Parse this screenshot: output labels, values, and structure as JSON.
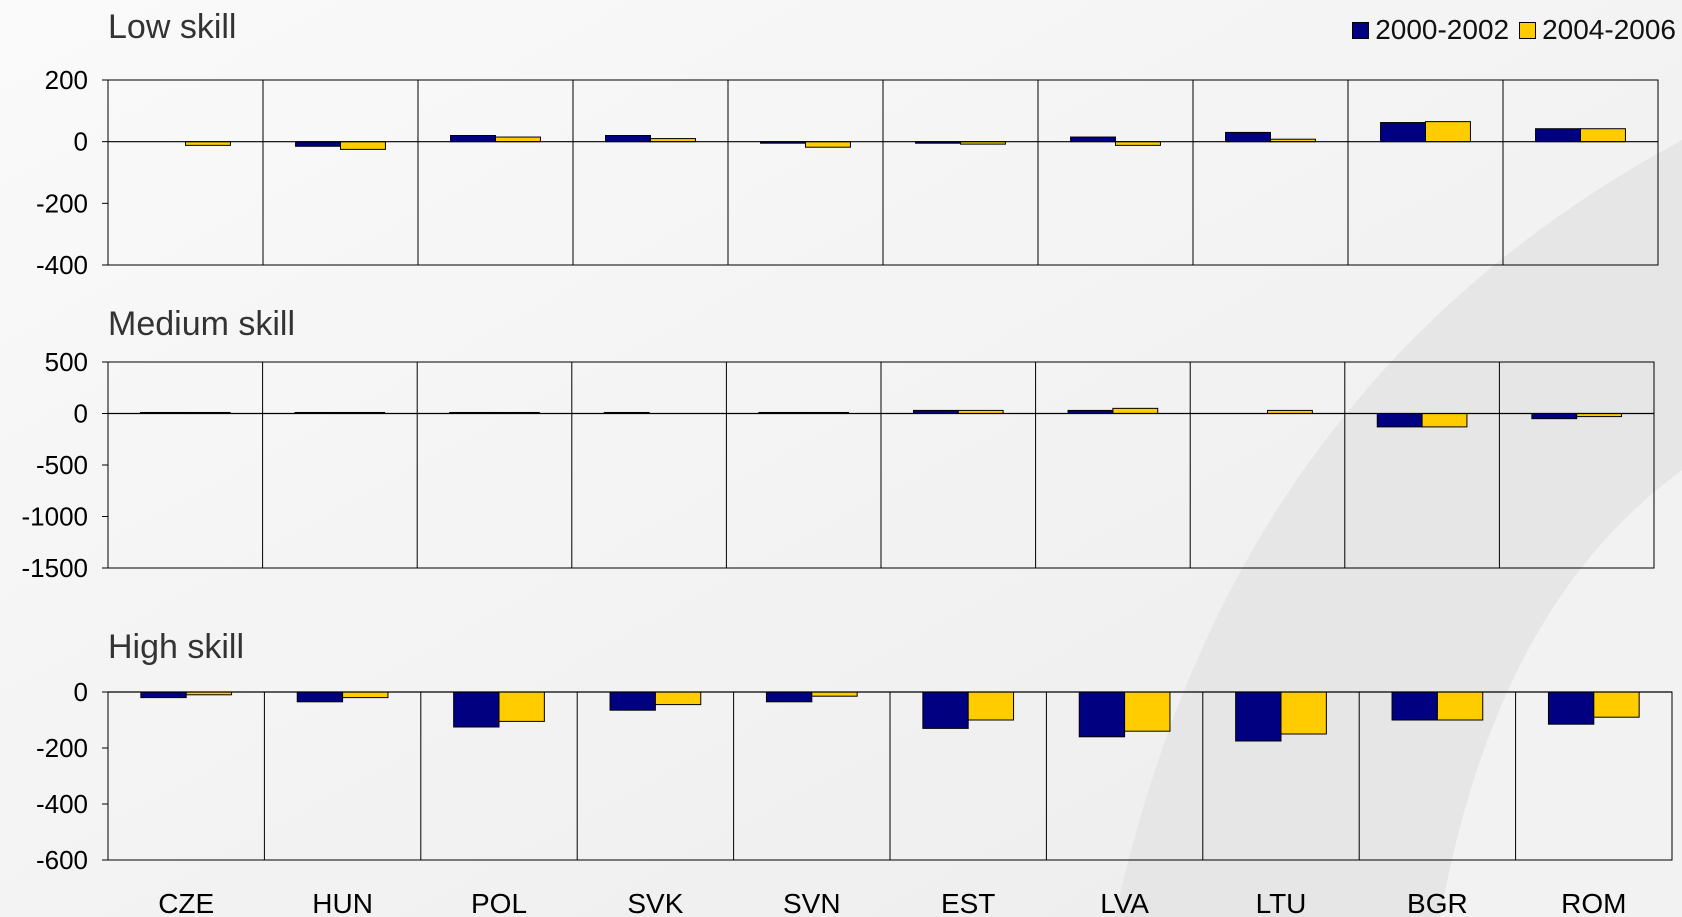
{
  "legend": {
    "series1": "2000-2002",
    "series2": "2004-2006"
  },
  "colors": {
    "series1": "#000080",
    "series2": "#ffcc00",
    "line": "#000000",
    "plot_bg": "#f4f4f4"
  },
  "chart_data": [
    {
      "type": "bar",
      "title": "Low skill",
      "categories": [
        "CZE",
        "HUN",
        "POL",
        "SVK",
        "SVN",
        "EST",
        "LVA",
        "LTU",
        "BGR",
        "ROM"
      ],
      "ylim": [
        -400,
        200
      ],
      "yticks": [
        200,
        0,
        -200,
        -400
      ],
      "series": [
        {
          "name": "2000-2002",
          "values": [
            0,
            -15,
            20,
            20,
            -5,
            -5,
            15,
            30,
            62,
            42
          ]
        },
        {
          "name": "2004-2006",
          "values": [
            -12,
            -25,
            15,
            10,
            -18,
            -8,
            -12,
            8,
            65,
            42
          ]
        }
      ]
    },
    {
      "type": "bar",
      "title": "Medium skill",
      "categories": [
        "CZE",
        "HUN",
        "POL",
        "SVK",
        "SVN",
        "EST",
        "LVA",
        "LTU",
        "BGR",
        "ROM"
      ],
      "ylim": [
        -1500,
        500
      ],
      "yticks": [
        500,
        0,
        -500,
        -1000,
        -1500
      ],
      "series": [
        {
          "name": "2000-2002",
          "values": [
            10,
            10,
            10,
            10,
            10,
            30,
            30,
            0,
            -130,
            -50
          ]
        },
        {
          "name": "2004-2006",
          "values": [
            10,
            10,
            10,
            0,
            10,
            30,
            50,
            30,
            -130,
            -30
          ]
        }
      ]
    },
    {
      "type": "bar",
      "title": "High skill",
      "categories": [
        "CZE",
        "HUN",
        "POL",
        "SVK",
        "SVN",
        "EST",
        "LVA",
        "LTU",
        "BGR",
        "ROM"
      ],
      "ylim": [
        -600,
        0
      ],
      "yticks": [
        0,
        -200,
        -400,
        -600
      ],
      "series": [
        {
          "name": "2000-2002",
          "values": [
            -20,
            -35,
            -125,
            -65,
            -35,
            -130,
            -160,
            -175,
            -100,
            -115
          ]
        },
        {
          "name": "2004-2006",
          "values": [
            -10,
            -20,
            -105,
            -45,
            -15,
            -100,
            -140,
            -150,
            -100,
            -90
          ]
        }
      ]
    }
  ]
}
